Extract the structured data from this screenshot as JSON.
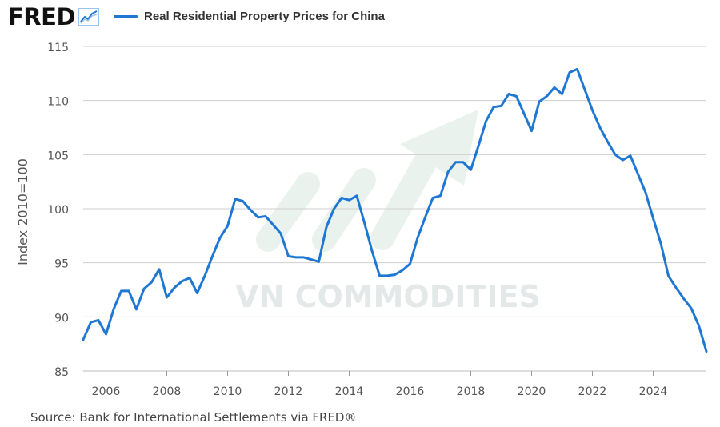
{
  "logo": {
    "text": "FRED",
    "icon": "line-graph-icon"
  },
  "legend": {
    "label": "Real Residential Property Prices for China",
    "color": "#1f77d4"
  },
  "source": "Source: Bank for International Settlements via FRED®",
  "watermark": {
    "text": "VN COMMODITIES",
    "icon": "rising-arrow-icon",
    "color": "#d8e8e0"
  },
  "colors": {
    "line": "#1f77d4",
    "grid": "#cfcfcf",
    "axis_text": "#555555",
    "background": "#ffffff"
  },
  "chart_data": {
    "type": "line",
    "title": "Real Residential Property Prices for China",
    "xlabel": "",
    "ylabel": "Index 2010=100",
    "xlim": [
      2005.25,
      2025.75
    ],
    "ylim": [
      85,
      115
    ],
    "xticks": [
      2006,
      2008,
      2010,
      2012,
      2014,
      2016,
      2018,
      2020,
      2022,
      2024
    ],
    "yticks": [
      85,
      90,
      95,
      100,
      105,
      110,
      115
    ],
    "grid": "horizontal",
    "legend_position": "top-left",
    "series": [
      {
        "name": "Real Residential Property Prices for China",
        "color": "#1f77d4",
        "x": [
          2005.25,
          2005.5,
          2005.75,
          2006.0,
          2006.25,
          2006.5,
          2006.75,
          2007.0,
          2007.25,
          2007.5,
          2007.75,
          2008.0,
          2008.25,
          2008.5,
          2008.75,
          2009.0,
          2009.25,
          2009.5,
          2009.75,
          2010.0,
          2010.25,
          2010.5,
          2010.75,
          2011.0,
          2011.25,
          2011.5,
          2011.75,
          2012.0,
          2012.25,
          2012.5,
          2012.75,
          2013.0,
          2013.25,
          2013.5,
          2013.75,
          2014.0,
          2014.25,
          2014.5,
          2014.75,
          2015.0,
          2015.25,
          2015.5,
          2015.75,
          2016.0,
          2016.25,
          2016.5,
          2016.75,
          2017.0,
          2017.25,
          2017.5,
          2017.75,
          2018.0,
          2018.25,
          2018.5,
          2018.75,
          2019.0,
          2019.25,
          2019.5,
          2019.75,
          2020.0,
          2020.25,
          2020.5,
          2020.75,
          2021.0,
          2021.25,
          2021.5,
          2021.75,
          2022.0,
          2022.25,
          2022.5,
          2022.75,
          2023.0,
          2023.25,
          2023.5,
          2023.75,
          2024.0,
          2024.25,
          2024.5,
          2024.75,
          2025.0,
          2025.25,
          2025.5,
          2025.75
        ],
        "values": [
          87.9,
          89.5,
          89.7,
          88.4,
          90.7,
          92.4,
          92.4,
          90.7,
          92.6,
          93.2,
          94.4,
          91.8,
          92.7,
          93.3,
          93.6,
          92.2,
          93.8,
          95.6,
          97.3,
          98.4,
          100.9,
          100.7,
          99.9,
          99.2,
          99.3,
          98.5,
          97.7,
          95.6,
          95.5,
          95.5,
          95.3,
          95.1,
          98.3,
          100.0,
          101.0,
          100.8,
          101.2,
          98.7,
          96.1,
          93.8,
          93.8,
          93.9,
          94.3,
          94.9,
          97.3,
          99.2,
          101.0,
          101.2,
          103.4,
          104.3,
          104.3,
          103.6,
          105.8,
          108.1,
          109.4,
          109.5,
          110.6,
          110.4,
          108.8,
          107.2,
          109.9,
          110.4,
          111.2,
          110.6,
          112.6,
          112.9,
          111.0,
          109.1,
          107.5,
          106.2,
          105.0,
          104.5,
          104.9,
          103.2,
          101.5,
          99.1,
          96.8,
          93.8,
          92.7,
          91.7,
          90.8,
          89.2,
          86.8
        ]
      }
    ]
  }
}
